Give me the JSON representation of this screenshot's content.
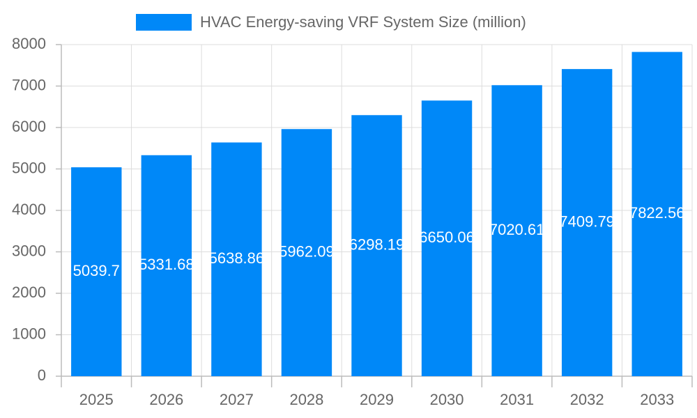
{
  "chart_data": {
    "type": "bar",
    "categories": [
      "2025",
      "2026",
      "2027",
      "2028",
      "2029",
      "2030",
      "2031",
      "2032",
      "2033"
    ],
    "series": [
      {
        "name": "HVAC Energy-saving VRF System Size (million)",
        "color": "#0088f8",
        "values": [
          5039.7,
          5331.68,
          5638.86,
          5962.09,
          6298.19,
          6650.06,
          7020.61,
          7409.79,
          7822.56
        ]
      }
    ],
    "ylim": [
      0,
      8000
    ],
    "yticks": [
      0,
      1000,
      2000,
      3000,
      4000,
      5000,
      6000,
      7000,
      8000
    ],
    "grid": true,
    "legend": "top"
  }
}
